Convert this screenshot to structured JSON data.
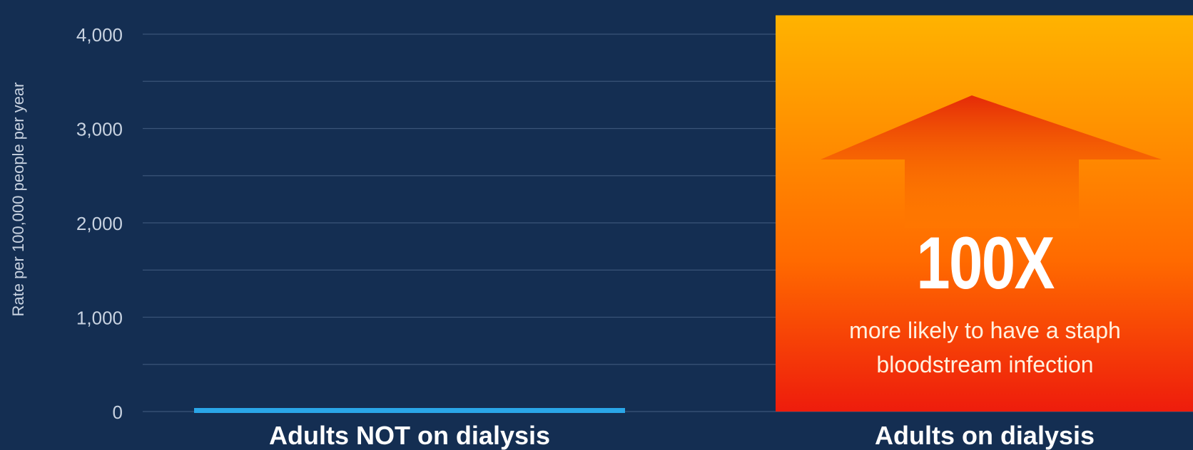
{
  "chart_data": {
    "type": "bar",
    "ylabel": "Rate per 100,000 people per year",
    "ylim": [
      0,
      4000
    ],
    "y_ticks": [
      "4,000",
      "3,000",
      "2,000",
      "1,000",
      "0"
    ],
    "grid": true,
    "categories": [
      "Adults NOT on dialysis",
      "Adults on dialysis"
    ],
    "values": [
      42,
      4200
    ],
    "colors": {
      "background": "#142e52",
      "gridline": "#3a5478",
      "bar_not_dialysis": "#2aa6e8",
      "bar_dialysis_top": "#ffb300",
      "bar_dialysis_bottom": "#ee1c0c",
      "arrow": "#e8400a"
    },
    "annotation": {
      "multiplier": "100X",
      "text_line1": "more likely to have a staph",
      "text_line2": "bloodstream infection",
      "icon": "up-arrow-icon"
    }
  }
}
